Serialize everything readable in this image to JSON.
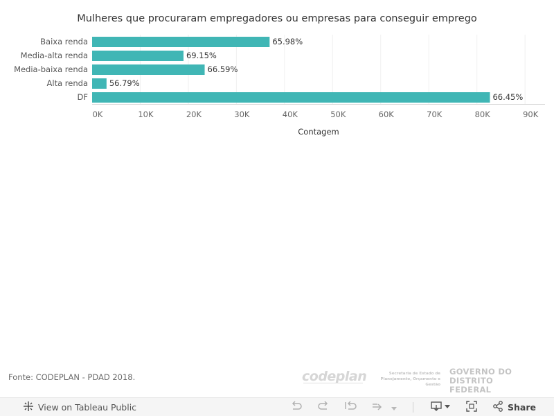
{
  "chart_data": {
    "type": "bar",
    "orientation": "horizontal",
    "title": "Mulheres que procuraram empregadores ou empresas para conseguir emprego",
    "xlabel": "Contagem",
    "ylabel": "",
    "categories": [
      "Baixa renda",
      "Media-alta renda",
      "Media-baixa renda",
      "Alta renda",
      "DF"
    ],
    "values": [
      36900,
      19000,
      23400,
      3000,
      82700
    ],
    "data_labels": [
      "65.98%",
      "69.15%",
      "66.59%",
      "56.79%",
      "66.45%"
    ],
    "xlim": [
      0,
      93000
    ],
    "ticks": [
      0,
      10000,
      20000,
      30000,
      40000,
      50000,
      60000,
      70000,
      80000,
      90000
    ],
    "tick_labels": [
      "0K",
      "10K",
      "20K",
      "30K",
      "40K",
      "50K",
      "60K",
      "70K",
      "80K",
      "90K"
    ],
    "bar_color": "#40b6b5",
    "grid": true
  },
  "footer": {
    "source": "Fonte: CODEPLAN - PDAD 2018.",
    "logo_codeplan": "codeplan",
    "logo_seplag": "Secretaria de Estado de Planejamento, Orçamento e Gestão",
    "logo_gdf_line1": "GOVERNO DO",
    "logo_gdf_line2": "DISTRITO FEDERAL"
  },
  "toolbar": {
    "view_label": "View on Tableau Public",
    "share_label": "Share",
    "icons": [
      "tableau-icon",
      "undo-icon",
      "redo-icon",
      "revert-icon",
      "refresh-icon",
      "download-icon",
      "fullscreen-icon",
      "share-icon"
    ]
  }
}
